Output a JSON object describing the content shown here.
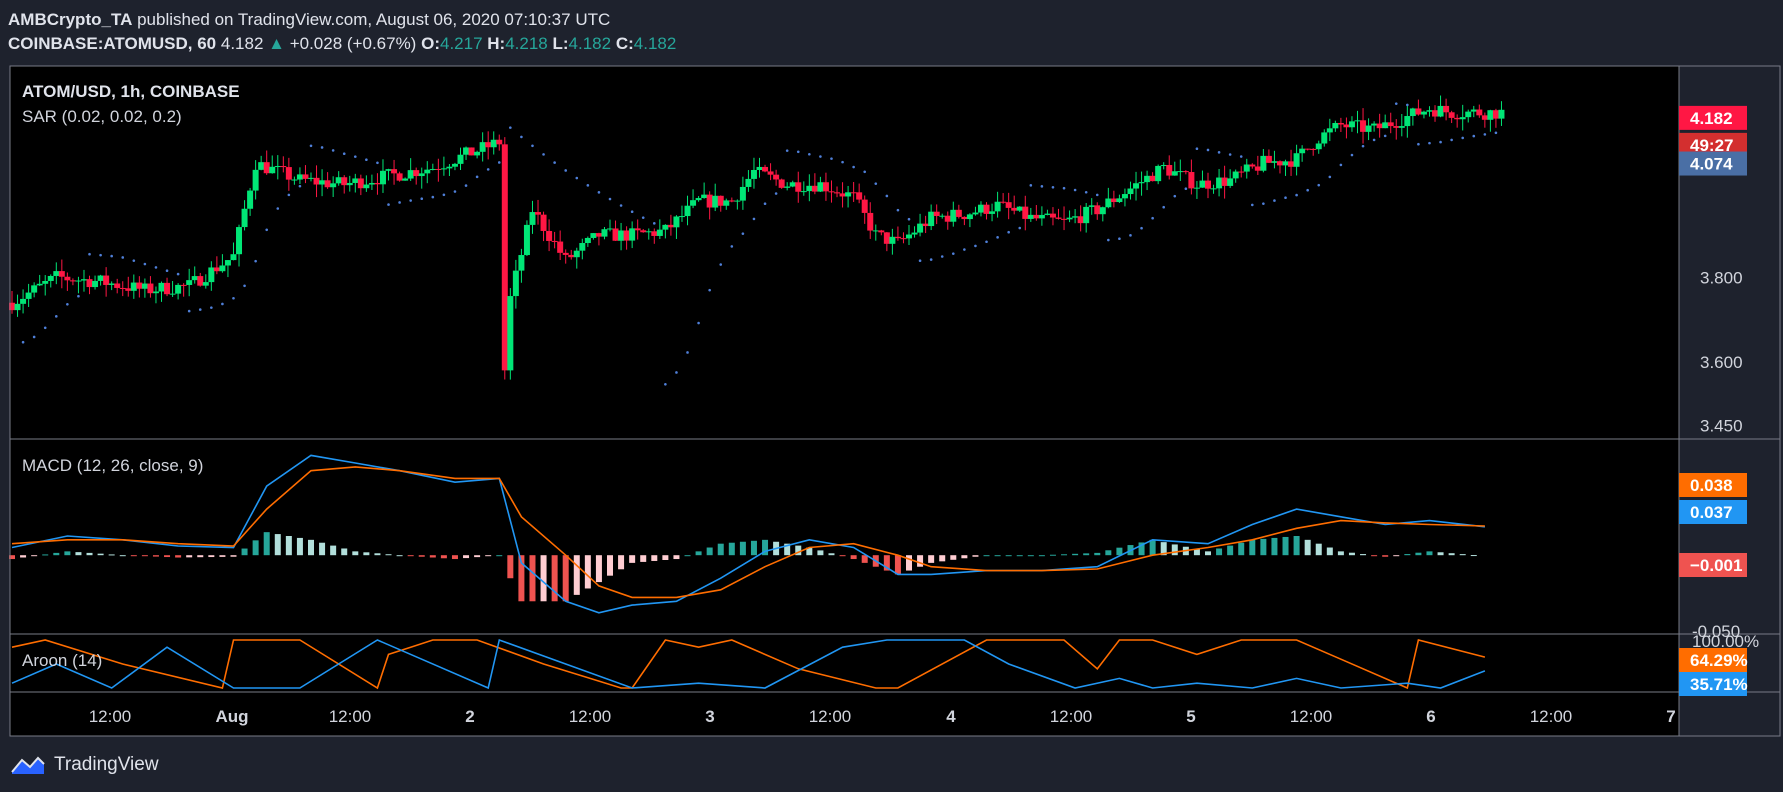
{
  "header": {
    "author": "AMBCrypto_TA",
    "published": " published on TradingView.com, August 06, 2020 07:10:37 UTC",
    "symbol": "COINBASE:ATOMUSD, 60",
    "last": "4.182",
    "change": "+0.028 (+0.67%)",
    "o_label": "O:",
    "o_val": "4.217",
    "h_label": "H:",
    "h_val": "4.218",
    "l_label": "L:",
    "l_val": "4.182",
    "c_label": "C:",
    "c_val": "4.182"
  },
  "footer": {
    "brand": "TradingView"
  },
  "colors": {
    "up": "#26a69a",
    "up_bright": "#00e676",
    "down": "#ff1744",
    "macd_line": "#2196f3",
    "signal_line": "#ff6d00",
    "sar": "#4f7fd8",
    "aroon_up": "#ff6d00",
    "aroon_down": "#2196f3",
    "bg": "#000000",
    "border": "#787b86"
  },
  "chart_data": [
    {
      "type": "candlestick",
      "title": "ATOM/USD, 1h, COINBASE",
      "overlay": "SAR (0.02, 0.02, 0.2)",
      "y_ticks": [
        "3.450",
        "3.600",
        "3.800",
        "4.074"
      ],
      "ylim": [
        3.42,
        4.3
      ],
      "x_ticks": [
        "12:00",
        "Aug",
        "12:00",
        "2",
        "12:00",
        "3",
        "12:00",
        "4",
        "12:00",
        "5",
        "12:00",
        "6",
        "12:00",
        "7"
      ],
      "price_labels": {
        "last": "4.182",
        "countdown": "49:27",
        "sar": "4.074"
      },
      "close_points": [
        [
          0,
          3.74
        ],
        [
          8,
          3.8
        ],
        [
          16,
          3.79
        ],
        [
          24,
          3.77
        ],
        [
          32,
          3.78
        ],
        [
          40,
          3.85
        ],
        [
          44,
          4.07
        ],
        [
          52,
          4.03
        ],
        [
          60,
          4.02
        ],
        [
          68,
          4.04
        ],
        [
          76,
          4.06
        ],
        [
          84,
          4.1
        ],
        [
          88,
          4.12
        ],
        [
          89,
          3.58
        ],
        [
          90,
          3.75
        ],
        [
          94,
          3.96
        ],
        [
          100,
          3.84
        ],
        [
          106,
          3.9
        ],
        [
          112,
          3.9
        ],
        [
          118,
          3.91
        ],
        [
          124,
          3.98
        ],
        [
          130,
          3.98
        ],
        [
          134,
          4.05
        ],
        [
          140,
          4.02
        ],
        [
          146,
          4.02
        ],
        [
          152,
          3.99
        ],
        [
          156,
          3.9
        ],
        [
          160,
          3.88
        ],
        [
          166,
          3.94
        ],
        [
          172,
          3.95
        ],
        [
          178,
          3.97
        ],
        [
          184,
          3.94
        ],
        [
          190,
          3.93
        ],
        [
          196,
          3.96
        ],
        [
          202,
          4.01
        ],
        [
          208,
          4.06
        ],
        [
          214,
          4.02
        ],
        [
          220,
          4.03
        ],
        [
          226,
          4.07
        ],
        [
          232,
          4.08
        ],
        [
          236,
          4.13
        ],
        [
          240,
          4.16
        ],
        [
          246,
          4.15
        ],
        [
          252,
          4.18
        ],
        [
          256,
          4.2
        ],
        [
          260,
          4.19
        ],
        [
          266,
          4.19
        ]
      ]
    },
    {
      "type": "line",
      "title": "MACD (12, 26, close, 9)",
      "y_ticks": [
        "-0.050"
      ],
      "value_labels": {
        "signal": "0.038",
        "macd": "0.037",
        "histogram": "−0.001"
      },
      "series": [
        {
          "name": "MACD",
          "x": [
            0,
            10,
            20,
            30,
            40,
            46,
            54,
            62,
            70,
            80,
            88,
            92,
            100,
            106,
            112,
            120,
            128,
            136,
            144,
            152,
            160,
            166,
            176,
            186,
            196,
            206,
            216,
            224,
            232,
            240,
            248,
            256,
            266
          ],
          "values": [
            0.01,
            0.025,
            0.02,
            0.012,
            0.01,
            0.09,
            0.13,
            0.12,
            0.11,
            0.095,
            0.1,
            -0.01,
            -0.06,
            -0.075,
            -0.065,
            -0.06,
            -0.03,
            0.005,
            0.02,
            0.01,
            -0.025,
            -0.025,
            -0.02,
            -0.02,
            -0.015,
            0.02,
            0.015,
            0.04,
            0.06,
            0.05,
            0.04,
            0.045,
            0.037
          ]
        },
        {
          "name": "Signal",
          "x": [
            0,
            10,
            20,
            30,
            40,
            46,
            54,
            62,
            70,
            80,
            88,
            92,
            100,
            106,
            112,
            120,
            128,
            136,
            144,
            152,
            160,
            166,
            176,
            186,
            196,
            206,
            216,
            224,
            232,
            240,
            248,
            256,
            266
          ],
          "values": [
            0.015,
            0.02,
            0.02,
            0.015,
            0.012,
            0.06,
            0.11,
            0.115,
            0.11,
            0.1,
            0.1,
            0.05,
            0.0,
            -0.04,
            -0.055,
            -0.055,
            -0.045,
            -0.015,
            0.01,
            0.015,
            0.0,
            -0.015,
            -0.02,
            -0.02,
            -0.018,
            0.0,
            0.01,
            0.02,
            0.035,
            0.045,
            0.042,
            0.04,
            0.038
          ]
        }
      ]
    },
    {
      "type": "line",
      "title": "Aroon (14)",
      "y_ticks": [
        "100.00%"
      ],
      "value_labels": {
        "up": "64.29%",
        "down": "35.71%"
      },
      "series": [
        {
          "name": "Aroon Up",
          "x": [
            0,
            6,
            20,
            38,
            40,
            52,
            66,
            68,
            72,
            76,
            84,
            96,
            110,
            112,
            118,
            124,
            130,
            142,
            156,
            160,
            176,
            190,
            196,
            200,
            206,
            214,
            222,
            232,
            240,
            252,
            254,
            266
          ],
          "values": [
            85,
            100,
            50,
            0,
            100,
            100,
            0,
            70,
            85,
            100,
            100,
            50,
            0,
            0,
            100,
            85,
            100,
            40,
            0,
            0,
            100,
            100,
            40,
            100,
            100,
            70,
            100,
            100,
            60,
            0,
            100,
            64.29
          ]
        },
        {
          "name": "Aroon Down",
          "x": [
            0,
            8,
            18,
            28,
            40,
            52,
            66,
            74,
            86,
            88,
            100,
            112,
            124,
            136,
            150,
            158,
            172,
            180,
            192,
            200,
            206,
            214,
            224,
            232,
            240,
            252,
            258,
            266
          ],
          "values": [
            10,
            50,
            0,
            85,
            0,
            0,
            100,
            60,
            0,
            100,
            50,
            0,
            10,
            0,
            85,
            100,
            100,
            50,
            0,
            20,
            0,
            10,
            0,
            20,
            0,
            10,
            0,
            35.71
          ]
        }
      ]
    }
  ]
}
